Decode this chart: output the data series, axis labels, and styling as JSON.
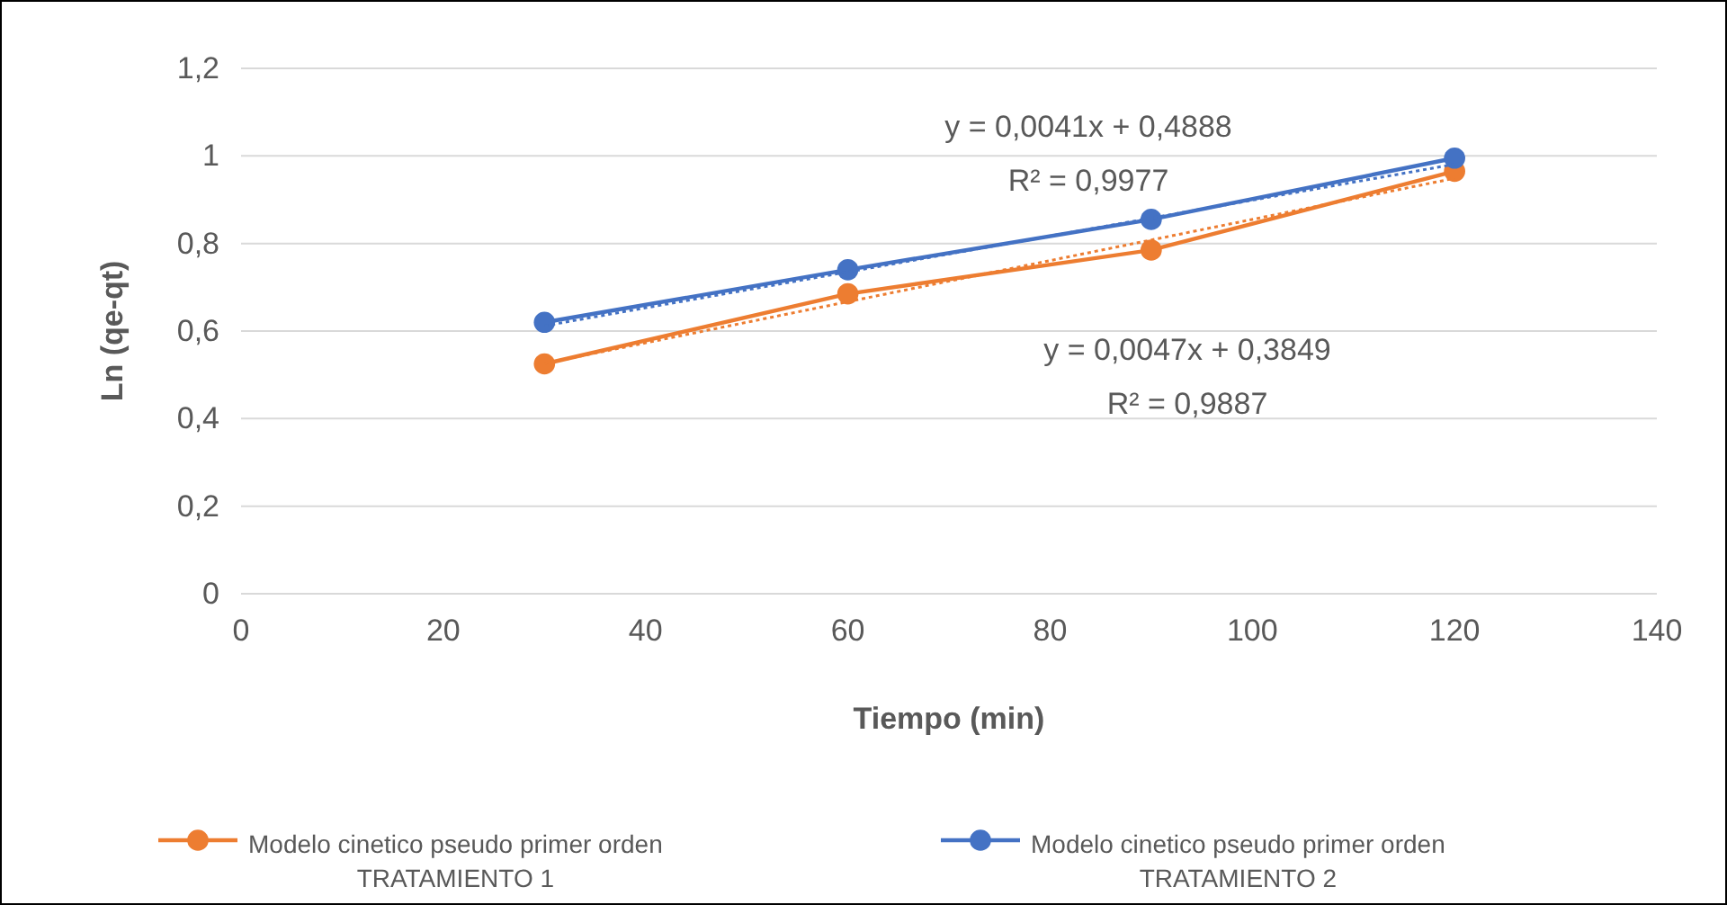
{
  "chart_data": {
    "type": "line",
    "xlabel": "Tiempo (min)",
    "ylabel": "Ln (qe-qt)",
    "xlim": [
      0,
      140
    ],
    "xticks": [
      0,
      20,
      40,
      60,
      80,
      100,
      120,
      140
    ],
    "ylim": [
      0,
      1.2
    ],
    "yticks": [
      0,
      {
        "value": 0.2,
        "label": "0,2"
      },
      {
        "value": 0.4,
        "label": "0,4"
      },
      {
        "value": 0.6,
        "label": "0,6"
      },
      {
        "value": 0.8,
        "label": "0,8"
      },
      1,
      {
        "value": 1.2,
        "label": "1,2"
      }
    ],
    "grid": "y",
    "legend": "bottom",
    "marker": "circle",
    "series": [
      {
        "name": "Modelo cinetico pseudo primer orden TRATAMIENTO 1",
        "color": "#ed7d31",
        "x": [
          30,
          60,
          90,
          120
        ],
        "values": [
          0.525,
          0.685,
          0.785,
          0.965
        ]
      },
      {
        "name": "Modelo cinetico pseudo primer orden TRATAMIENTO 2",
        "color": "#4472c4",
        "x": [
          30,
          60,
          90,
          120
        ],
        "values": [
          0.62,
          0.74,
          0.855,
          0.995
        ]
      },
      {
        "type": "line",
        "color": "#ed7d31",
        "line_style": "dotted",
        "marker": "none",
        "x": [
          30,
          120
        ],
        "values": [
          0.526,
          0.949
        ]
      },
      {
        "type": "line",
        "color": "#4472c4",
        "line_style": "dotted",
        "marker": "none",
        "x": [
          30,
          120
        ],
        "values": [
          0.612,
          0.981
        ]
      }
    ],
    "annotations": [
      "y = 0,0041x + 0,4888",
      "R² = 0,9977",
      "y = 0,0047x + 0,3849",
      "R² = 0,9887"
    ]
  }
}
